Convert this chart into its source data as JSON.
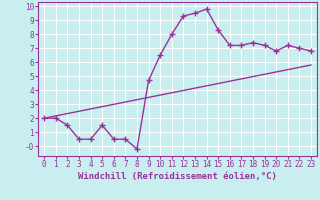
{
  "title": "",
  "xlabel": "Windchill (Refroidissement éolien,°C)",
  "ylabel": "",
  "bg_color": "#c8eef0",
  "line_color": "#993399",
  "grid_color": "#ffffff",
  "xlim": [
    -0.5,
    23.5
  ],
  "ylim": [
    -0.7,
    10.3
  ],
  "yticks": [
    0,
    1,
    2,
    3,
    4,
    5,
    6,
    7,
    8,
    9,
    10
  ],
  "ytick_labels": [
    "-0",
    "1",
    "2",
    "3",
    "4",
    "5",
    "6",
    "7",
    "8",
    "9",
    "10"
  ],
  "xticks": [
    0,
    1,
    2,
    3,
    4,
    5,
    6,
    7,
    8,
    9,
    10,
    11,
    12,
    13,
    14,
    15,
    16,
    17,
    18,
    19,
    20,
    21,
    22,
    23
  ],
  "line1_x": [
    0,
    1,
    2,
    3,
    4,
    5,
    6,
    7,
    8,
    9,
    10,
    11,
    12,
    13,
    14,
    15,
    16,
    17,
    18,
    19,
    20,
    21,
    22,
    23
  ],
  "line1_y": [
    2.0,
    2.0,
    1.5,
    0.5,
    0.5,
    1.5,
    0.5,
    0.5,
    -0.2,
    4.7,
    6.5,
    8.0,
    9.3,
    9.5,
    9.8,
    8.3,
    7.2,
    7.2,
    7.4,
    7.2,
    6.8,
    7.2,
    7.0,
    6.8
  ],
  "line2_x": [
    0,
    23
  ],
  "line2_y": [
    2.0,
    5.8
  ],
  "marker": "+",
  "markersize": 4,
  "linewidth": 1.0,
  "tick_fontsize": 5.5,
  "xlabel_fontsize": 6.5
}
